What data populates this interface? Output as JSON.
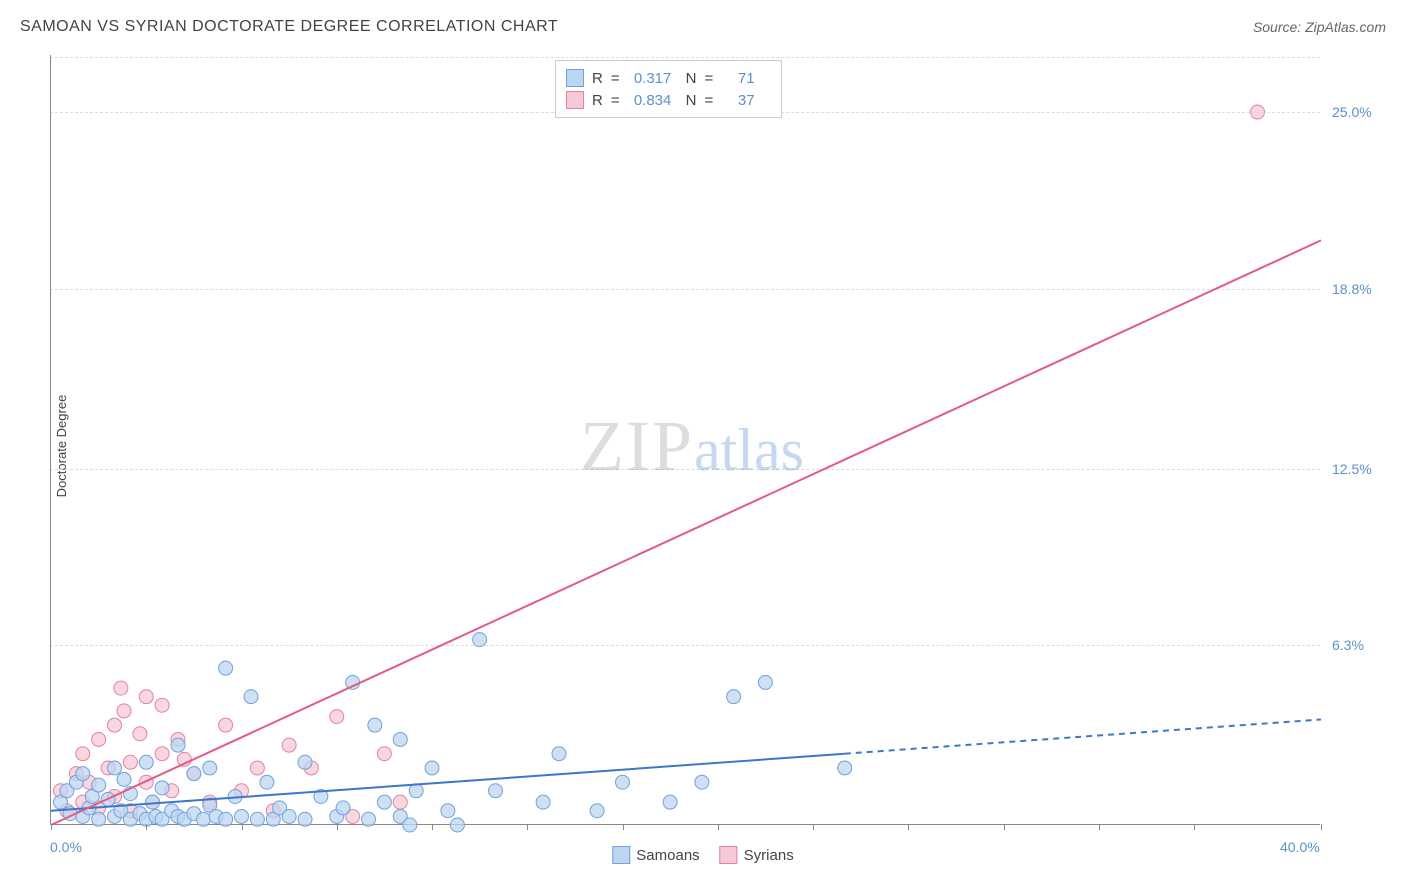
{
  "header": {
    "title": "SAMOAN VS SYRIAN DOCTORATE DEGREE CORRELATION CHART",
    "source": "Source: ZipAtlas.com"
  },
  "ylabel": "Doctorate Degree",
  "watermark": {
    "part1": "ZIP",
    "part2": "atlas"
  },
  "chart": {
    "type": "scatter",
    "xlim": [
      0,
      40
    ],
    "ylim": [
      0,
      27
    ],
    "xaxis_labels": [
      {
        "text": "0.0%",
        "at": 0
      },
      {
        "text": "40.0%",
        "at": 40
      }
    ],
    "yticks": [
      {
        "label": "6.3%",
        "at": 6.3
      },
      {
        "label": "12.5%",
        "at": 12.5
      },
      {
        "label": "18.8%",
        "at": 18.8
      },
      {
        "label": "25.0%",
        "at": 25.0
      }
    ],
    "xtick_positions": [
      0,
      3,
      6,
      9,
      12,
      15,
      18,
      21,
      24,
      27,
      30,
      33,
      36,
      40
    ],
    "background_color": "#ffffff",
    "grid_color": "#dddddd",
    "axis_color": "#888888",
    "label_color": "#5b8fd6",
    "marker_radius": 7,
    "marker_stroke_width": 1,
    "trend_line_width": 2
  },
  "series": [
    {
      "name": "Samoans",
      "color_fill": "#bcd5f0",
      "color_stroke": "#6fa3dd",
      "R": "0.317",
      "N": "71",
      "trend": {
        "x1": 0,
        "y1": 0.5,
        "x2": 25,
        "y2": 2.5,
        "solid_to": 25,
        "dash_x2": 40,
        "dash_y2": 3.7,
        "color": "#3b78c9"
      },
      "points": [
        [
          0.3,
          0.8
        ],
        [
          0.5,
          1.2
        ],
        [
          0.6,
          0.4
        ],
        [
          0.8,
          1.5
        ],
        [
          1.0,
          0.3
        ],
        [
          1.0,
          1.8
        ],
        [
          1.2,
          0.6
        ],
        [
          1.3,
          1.0
        ],
        [
          1.5,
          0.2
        ],
        [
          1.5,
          1.4
        ],
        [
          1.8,
          0.9
        ],
        [
          2.0,
          0.3
        ],
        [
          2.0,
          2.0
        ],
        [
          2.2,
          0.5
        ],
        [
          2.3,
          1.6
        ],
        [
          2.5,
          0.2
        ],
        [
          2.5,
          1.1
        ],
        [
          2.8,
          0.4
        ],
        [
          3.0,
          0.2
        ],
        [
          3.0,
          2.2
        ],
        [
          3.2,
          0.8
        ],
        [
          3.3,
          0.3
        ],
        [
          3.5,
          1.3
        ],
        [
          3.5,
          0.2
        ],
        [
          3.8,
          0.5
        ],
        [
          4.0,
          0.3
        ],
        [
          4.0,
          2.8
        ],
        [
          4.2,
          0.2
        ],
        [
          4.5,
          1.8
        ],
        [
          4.5,
          0.4
        ],
        [
          4.8,
          0.2
        ],
        [
          5.0,
          0.7
        ],
        [
          5.0,
          2.0
        ],
        [
          5.2,
          0.3
        ],
        [
          5.5,
          5.5
        ],
        [
          5.5,
          0.2
        ],
        [
          5.8,
          1.0
        ],
        [
          6.0,
          0.3
        ],
        [
          6.3,
          4.5
        ],
        [
          6.5,
          0.2
        ],
        [
          6.8,
          1.5
        ],
        [
          7.0,
          0.2
        ],
        [
          7.2,
          0.6
        ],
        [
          7.5,
          0.3
        ],
        [
          8.0,
          2.2
        ],
        [
          8.0,
          0.2
        ],
        [
          8.5,
          1.0
        ],
        [
          9.0,
          0.3
        ],
        [
          9.2,
          0.6
        ],
        [
          9.5,
          5.0
        ],
        [
          10.0,
          0.2
        ],
        [
          10.2,
          3.5
        ],
        [
          10.5,
          0.8
        ],
        [
          11.0,
          3.0
        ],
        [
          11.0,
          0.3
        ],
        [
          11.5,
          1.2
        ],
        [
          12.0,
          2.0
        ],
        [
          12.5,
          0.5
        ],
        [
          13.5,
          6.5
        ],
        [
          14.0,
          1.2
        ],
        [
          15.5,
          0.8
        ],
        [
          16.0,
          2.5
        ],
        [
          17.2,
          0.5
        ],
        [
          18.0,
          1.5
        ],
        [
          19.5,
          0.8
        ],
        [
          20.5,
          1.5
        ],
        [
          21.5,
          4.5
        ],
        [
          22.5,
          5.0
        ],
        [
          25.0,
          2.0
        ],
        [
          11.3,
          0.0
        ],
        [
          12.8,
          0.0
        ]
      ]
    },
    {
      "name": "Syrians",
      "color_fill": "#f7c9d6",
      "color_stroke": "#e97fa3",
      "R": "0.834",
      "N": "37",
      "trend": {
        "x1": 0,
        "y1": 0.0,
        "x2": 40,
        "y2": 20.5,
        "solid_to": 40,
        "color": "#e35b85"
      },
      "points": [
        [
          0.3,
          1.2
        ],
        [
          0.5,
          0.5
        ],
        [
          0.8,
          1.8
        ],
        [
          1.0,
          2.5
        ],
        [
          1.0,
          0.8
        ],
        [
          1.2,
          1.5
        ],
        [
          1.5,
          3.0
        ],
        [
          1.5,
          0.6
        ],
        [
          1.8,
          2.0
        ],
        [
          2.0,
          3.5
        ],
        [
          2.0,
          1.0
        ],
        [
          2.3,
          4.0
        ],
        [
          2.5,
          2.2
        ],
        [
          2.5,
          0.5
        ],
        [
          2.8,
          3.2
        ],
        [
          3.0,
          1.5
        ],
        [
          3.0,
          4.5
        ],
        [
          3.2,
          0.8
        ],
        [
          3.5,
          2.5
        ],
        [
          3.5,
          4.2
        ],
        [
          3.8,
          1.2
        ],
        [
          4.0,
          3.0
        ],
        [
          4.2,
          2.3
        ],
        [
          4.5,
          1.8
        ],
        [
          5.0,
          0.8
        ],
        [
          5.5,
          3.5
        ],
        [
          6.0,
          1.2
        ],
        [
          6.5,
          2.0
        ],
        [
          7.0,
          0.5
        ],
        [
          7.5,
          2.8
        ],
        [
          8.2,
          2.0
        ],
        [
          9.0,
          3.8
        ],
        [
          9.5,
          0.3
        ],
        [
          10.5,
          2.5
        ],
        [
          11.0,
          0.8
        ],
        [
          38.0,
          25.0
        ],
        [
          2.2,
          4.8
        ]
      ]
    }
  ],
  "legend_top": {
    "R_label": "R",
    "N_label": "N",
    "equals": "="
  },
  "legend_bottom": {
    "items": [
      "Samoans",
      "Syrians"
    ]
  }
}
